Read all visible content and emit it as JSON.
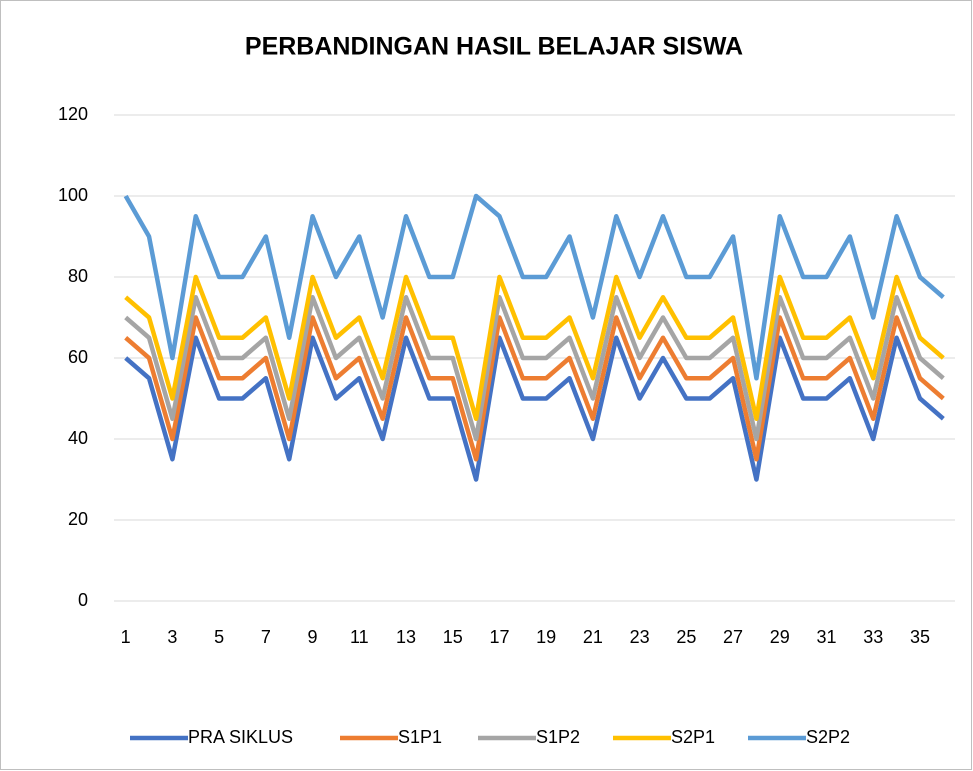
{
  "chart_data": {
    "type": "line",
    "title": "PERBANDINGAN HASIL BELAJAR SISWA",
    "categories": [
      "1",
      null,
      "3",
      null,
      "5",
      null,
      "7",
      null,
      "9",
      null,
      "11",
      null,
      "13",
      null,
      "15",
      null,
      "17",
      null,
      "19",
      null,
      "21",
      null,
      "23",
      null,
      "25",
      null,
      "27",
      null,
      "29",
      null,
      "31",
      null,
      "33",
      null,
      "35",
      null
    ],
    "series": [
      {
        "name": "PRA SIKLUS",
        "color": "#4472c4",
        "values": [
          60,
          55,
          35,
          65,
          50,
          50,
          55,
          35,
          65,
          50,
          55,
          40,
          65,
          50,
          50,
          30,
          65,
          50,
          50,
          55,
          40,
          65,
          50,
          60,
          50,
          50,
          55,
          30,
          65,
          50,
          50,
          55,
          40,
          65,
          50,
          45
        ]
      },
      {
        "name": "S1P1",
        "color": "#ed7d31",
        "values": [
          65,
          60,
          40,
          70,
          55,
          55,
          60,
          40,
          70,
          55,
          60,
          45,
          70,
          55,
          55,
          35,
          70,
          55,
          55,
          60,
          45,
          70,
          55,
          65,
          55,
          55,
          60,
          35,
          70,
          55,
          55,
          60,
          45,
          70,
          55,
          50
        ]
      },
      {
        "name": "S1P2",
        "color": "#a5a5a5",
        "values": [
          70,
          65,
          45,
          75,
          60,
          60,
          65,
          45,
          75,
          60,
          65,
          50,
          75,
          60,
          60,
          40,
          75,
          60,
          60,
          65,
          50,
          75,
          60,
          70,
          60,
          60,
          65,
          40,
          75,
          60,
          60,
          65,
          50,
          75,
          60,
          55
        ]
      },
      {
        "name": "S2P1",
        "color": "#ffc000",
        "values": [
          75,
          70,
          50,
          80,
          65,
          65,
          70,
          50,
          80,
          65,
          70,
          55,
          80,
          65,
          65,
          45,
          80,
          65,
          65,
          70,
          55,
          80,
          65,
          75,
          65,
          65,
          70,
          45,
          80,
          65,
          65,
          70,
          55,
          80,
          65,
          60
        ]
      },
      {
        "name": "S2P2",
        "color": "#5b9bd5",
        "values": [
          100,
          90,
          60,
          95,
          80,
          80,
          90,
          65,
          95,
          80,
          90,
          70,
          95,
          80,
          80,
          100,
          95,
          80,
          80,
          90,
          70,
          95,
          80,
          95,
          80,
          80,
          90,
          55,
          95,
          80,
          80,
          90,
          70,
          95,
          80,
          75
        ]
      }
    ],
    "ylim": [
      0,
      120
    ],
    "yticks": [
      0,
      20,
      40,
      60,
      80,
      100,
      120
    ],
    "grid": true,
    "legend": "bottom"
  }
}
